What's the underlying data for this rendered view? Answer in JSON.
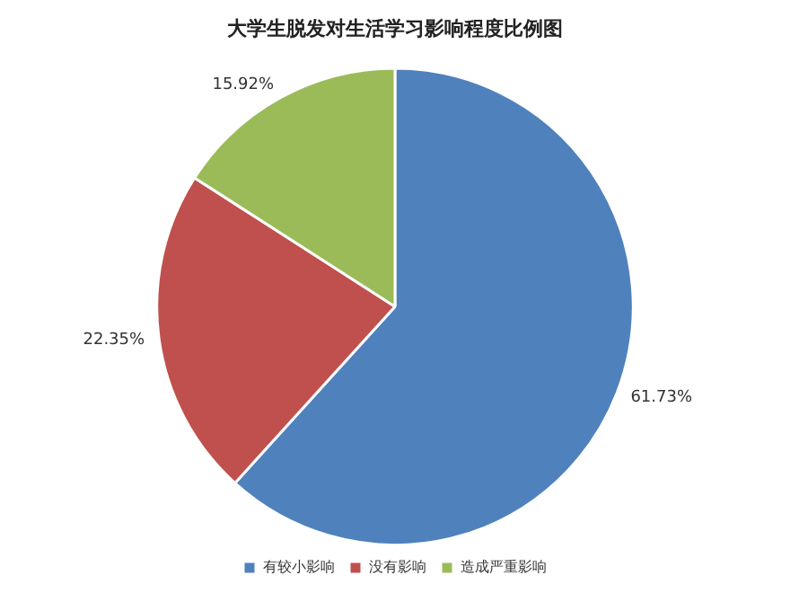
{
  "chart_data": {
    "type": "pie",
    "title": "大学生脱发对生活学习影响程度比例图",
    "categories": [
      "有较小影响",
      "没有影响",
      "造成严重影响"
    ],
    "values": [
      61.73,
      22.35,
      15.92
    ],
    "colors": [
      "#4f81bd",
      "#c0504d",
      "#9bbb59"
    ],
    "value_labels": [
      "61.73%",
      "22.35%",
      "15.92%"
    ],
    "legend": "bottom"
  }
}
